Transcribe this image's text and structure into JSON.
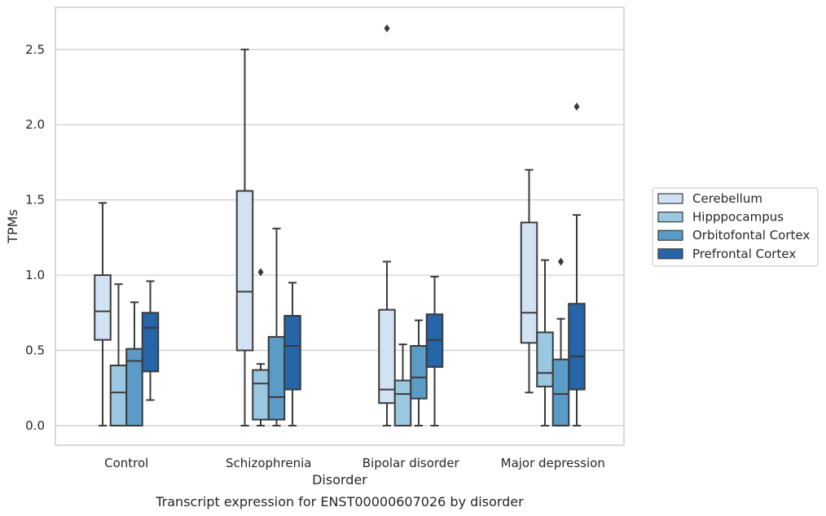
{
  "chart_data": {
    "type": "box",
    "title": "",
    "caption": "Transcript expression for ENST00000607026 by disorder",
    "xlabel": "Disorder",
    "ylabel": "TPMs",
    "ylim": [
      -0.13,
      2.78
    ],
    "yticks": [
      0.0,
      0.5,
      1.0,
      1.5,
      2.0,
      2.5
    ],
    "ytick_labels": [
      "0.0",
      "0.5",
      "1.0",
      "1.5",
      "2.0",
      "2.5"
    ],
    "grid": "horizontal",
    "legend_position": "right",
    "categories": [
      "Control",
      "Schizophrenia",
      "Bipolar disorder",
      "Major depression"
    ],
    "series": [
      {
        "name": "Cerebellum",
        "color": "#d1e2f2",
        "boxes": [
          {
            "whislo": 0.0,
            "q1": 0.57,
            "med": 0.76,
            "q3": 1.0,
            "whishi": 1.48,
            "fliers": []
          },
          {
            "whislo": 0.0,
            "q1": 0.5,
            "med": 0.89,
            "q3": 1.56,
            "whishi": 2.5,
            "fliers": []
          },
          {
            "whislo": 0.0,
            "q1": 0.15,
            "med": 0.24,
            "q3": 0.77,
            "whishi": 1.09,
            "fliers": [
              2.64
            ]
          },
          {
            "whislo": 0.22,
            "q1": 0.55,
            "med": 0.75,
            "q3": 1.35,
            "whishi": 1.7,
            "fliers": []
          }
        ]
      },
      {
        "name": "Hipppocampus",
        "color": "#9ac8e0",
        "boxes": [
          {
            "whislo": 0.0,
            "q1": 0.0,
            "med": 0.22,
            "q3": 0.4,
            "whishi": 0.94,
            "fliers": []
          },
          {
            "whislo": 0.0,
            "q1": 0.04,
            "med": 0.28,
            "q3": 0.37,
            "whishi": 0.41,
            "fliers": [
              1.02
            ]
          },
          {
            "whislo": 0.0,
            "q1": 0.0,
            "med": 0.21,
            "q3": 0.3,
            "whishi": 0.54,
            "fliers": []
          },
          {
            "whislo": 0.0,
            "q1": 0.26,
            "med": 0.35,
            "q3": 0.62,
            "whishi": 1.1,
            "fliers": []
          }
        ]
      },
      {
        "name": "Orbitofontal Cortex",
        "color": "#5a9bc8",
        "boxes": [
          {
            "whislo": 0.0,
            "q1": 0.0,
            "med": 0.43,
            "q3": 0.51,
            "whishi": 0.82,
            "fliers": []
          },
          {
            "whislo": 0.0,
            "q1": 0.04,
            "med": 0.19,
            "q3": 0.59,
            "whishi": 1.31,
            "fliers": []
          },
          {
            "whislo": 0.0,
            "q1": 0.18,
            "med": 0.32,
            "q3": 0.53,
            "whishi": 0.7,
            "fliers": []
          },
          {
            "whislo": 0.0,
            "q1": 0.0,
            "med": 0.21,
            "q3": 0.44,
            "whishi": 0.71,
            "fliers": [
              1.09
            ]
          }
        ]
      },
      {
        "name": "Prefrontal Cortex",
        "color": "#2565a8",
        "boxes": [
          {
            "whislo": 0.17,
            "q1": 0.36,
            "med": 0.65,
            "q3": 0.75,
            "whishi": 0.96,
            "fliers": []
          },
          {
            "whislo": 0.0,
            "q1": 0.24,
            "med": 0.53,
            "q3": 0.73,
            "whishi": 0.95,
            "fliers": []
          },
          {
            "whislo": 0.0,
            "q1": 0.39,
            "med": 0.57,
            "q3": 0.74,
            "whishi": 0.99,
            "fliers": []
          },
          {
            "whislo": 0.0,
            "q1": 0.24,
            "med": 0.46,
            "q3": 0.81,
            "whishi": 1.4,
            "fliers": [
              2.12
            ]
          }
        ]
      }
    ],
    "colors": {
      "grid": "#cccccc",
      "frame": "#cccccc",
      "edge": "#3a3a3a"
    }
  }
}
